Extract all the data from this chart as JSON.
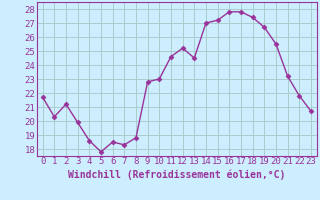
{
  "x": [
    0,
    1,
    2,
    3,
    4,
    5,
    6,
    7,
    8,
    9,
    10,
    11,
    12,
    13,
    14,
    15,
    16,
    17,
    18,
    19,
    20,
    21,
    22,
    23
  ],
  "y": [
    21.7,
    20.3,
    21.2,
    19.9,
    18.6,
    17.8,
    18.5,
    18.3,
    18.8,
    22.8,
    23.0,
    24.6,
    25.2,
    24.5,
    27.0,
    27.2,
    27.8,
    27.8,
    27.4,
    26.7,
    25.5,
    23.2,
    21.8,
    20.7
  ],
  "line_color": "#993399",
  "marker": "D",
  "marker_size": 2.5,
  "background_color": "#cceeff",
  "grid_color": "#aacccc",
  "xlabel": "Windchill (Refroidissement éolien,°C)",
  "xlabel_fontsize": 7,
  "tick_fontsize": 6.5,
  "ylim": [
    17.5,
    28.5
  ],
  "xlim": [
    -0.5,
    23.5
  ],
  "yticks": [
    18,
    19,
    20,
    21,
    22,
    23,
    24,
    25,
    26,
    27,
    28
  ],
  "xticks": [
    0,
    1,
    2,
    3,
    4,
    5,
    6,
    7,
    8,
    9,
    10,
    11,
    12,
    13,
    14,
    15,
    16,
    17,
    18,
    19,
    20,
    21,
    22,
    23
  ]
}
